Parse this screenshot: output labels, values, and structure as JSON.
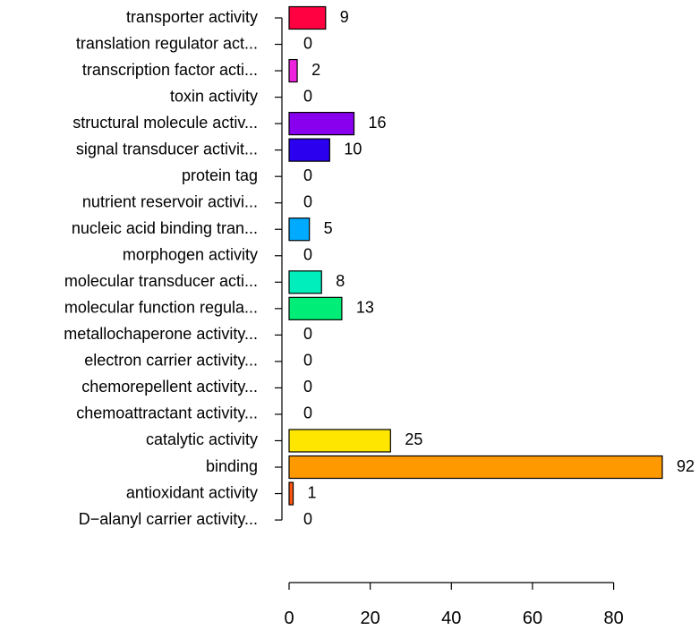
{
  "chart_data": {
    "type": "bar",
    "orientation": "horizontal",
    "title": "",
    "xlabel": "",
    "ylabel": "",
    "xlim": [
      0,
      92
    ],
    "x_ticks": [
      0,
      20,
      40,
      60,
      80
    ],
    "grid": false,
    "legend": "none",
    "categories": [
      "transporter activity",
      "translation regulator act...",
      "transcription factor acti...",
      "toxin activity",
      "structural molecule activ...",
      "signal transducer activit...",
      "protein tag",
      "nutrient reservoir activi...",
      "nucleic acid binding tran...",
      "morphogen activity",
      "molecular transducer acti...",
      "molecular function regula...",
      "metallochaperone activity...",
      "electron carrier activity...",
      "chemorepellent activity...",
      "chemoattractant activity...",
      "catalytic activity",
      "binding",
      "antioxidant activity",
      "D−alanyl carrier activity..."
    ],
    "values": [
      9,
      0,
      2,
      0,
      16,
      10,
      0,
      0,
      5,
      0,
      8,
      13,
      0,
      0,
      0,
      0,
      25,
      92,
      1,
      0
    ],
    "colors": [
      "#ff0040",
      "#ff00aa",
      "#ee22dd",
      "#cc00ff",
      "#8800ee",
      "#2a00ee",
      "#0033ff",
      "#0077ff",
      "#00aaff",
      "#00cccc",
      "#00eebb",
      "#00ee77",
      "#22ee22",
      "#77ee00",
      "#bbee00",
      "#ddee00",
      "#ffe600",
      "#ff9900",
      "#ff5511",
      "#ff2200"
    ]
  }
}
